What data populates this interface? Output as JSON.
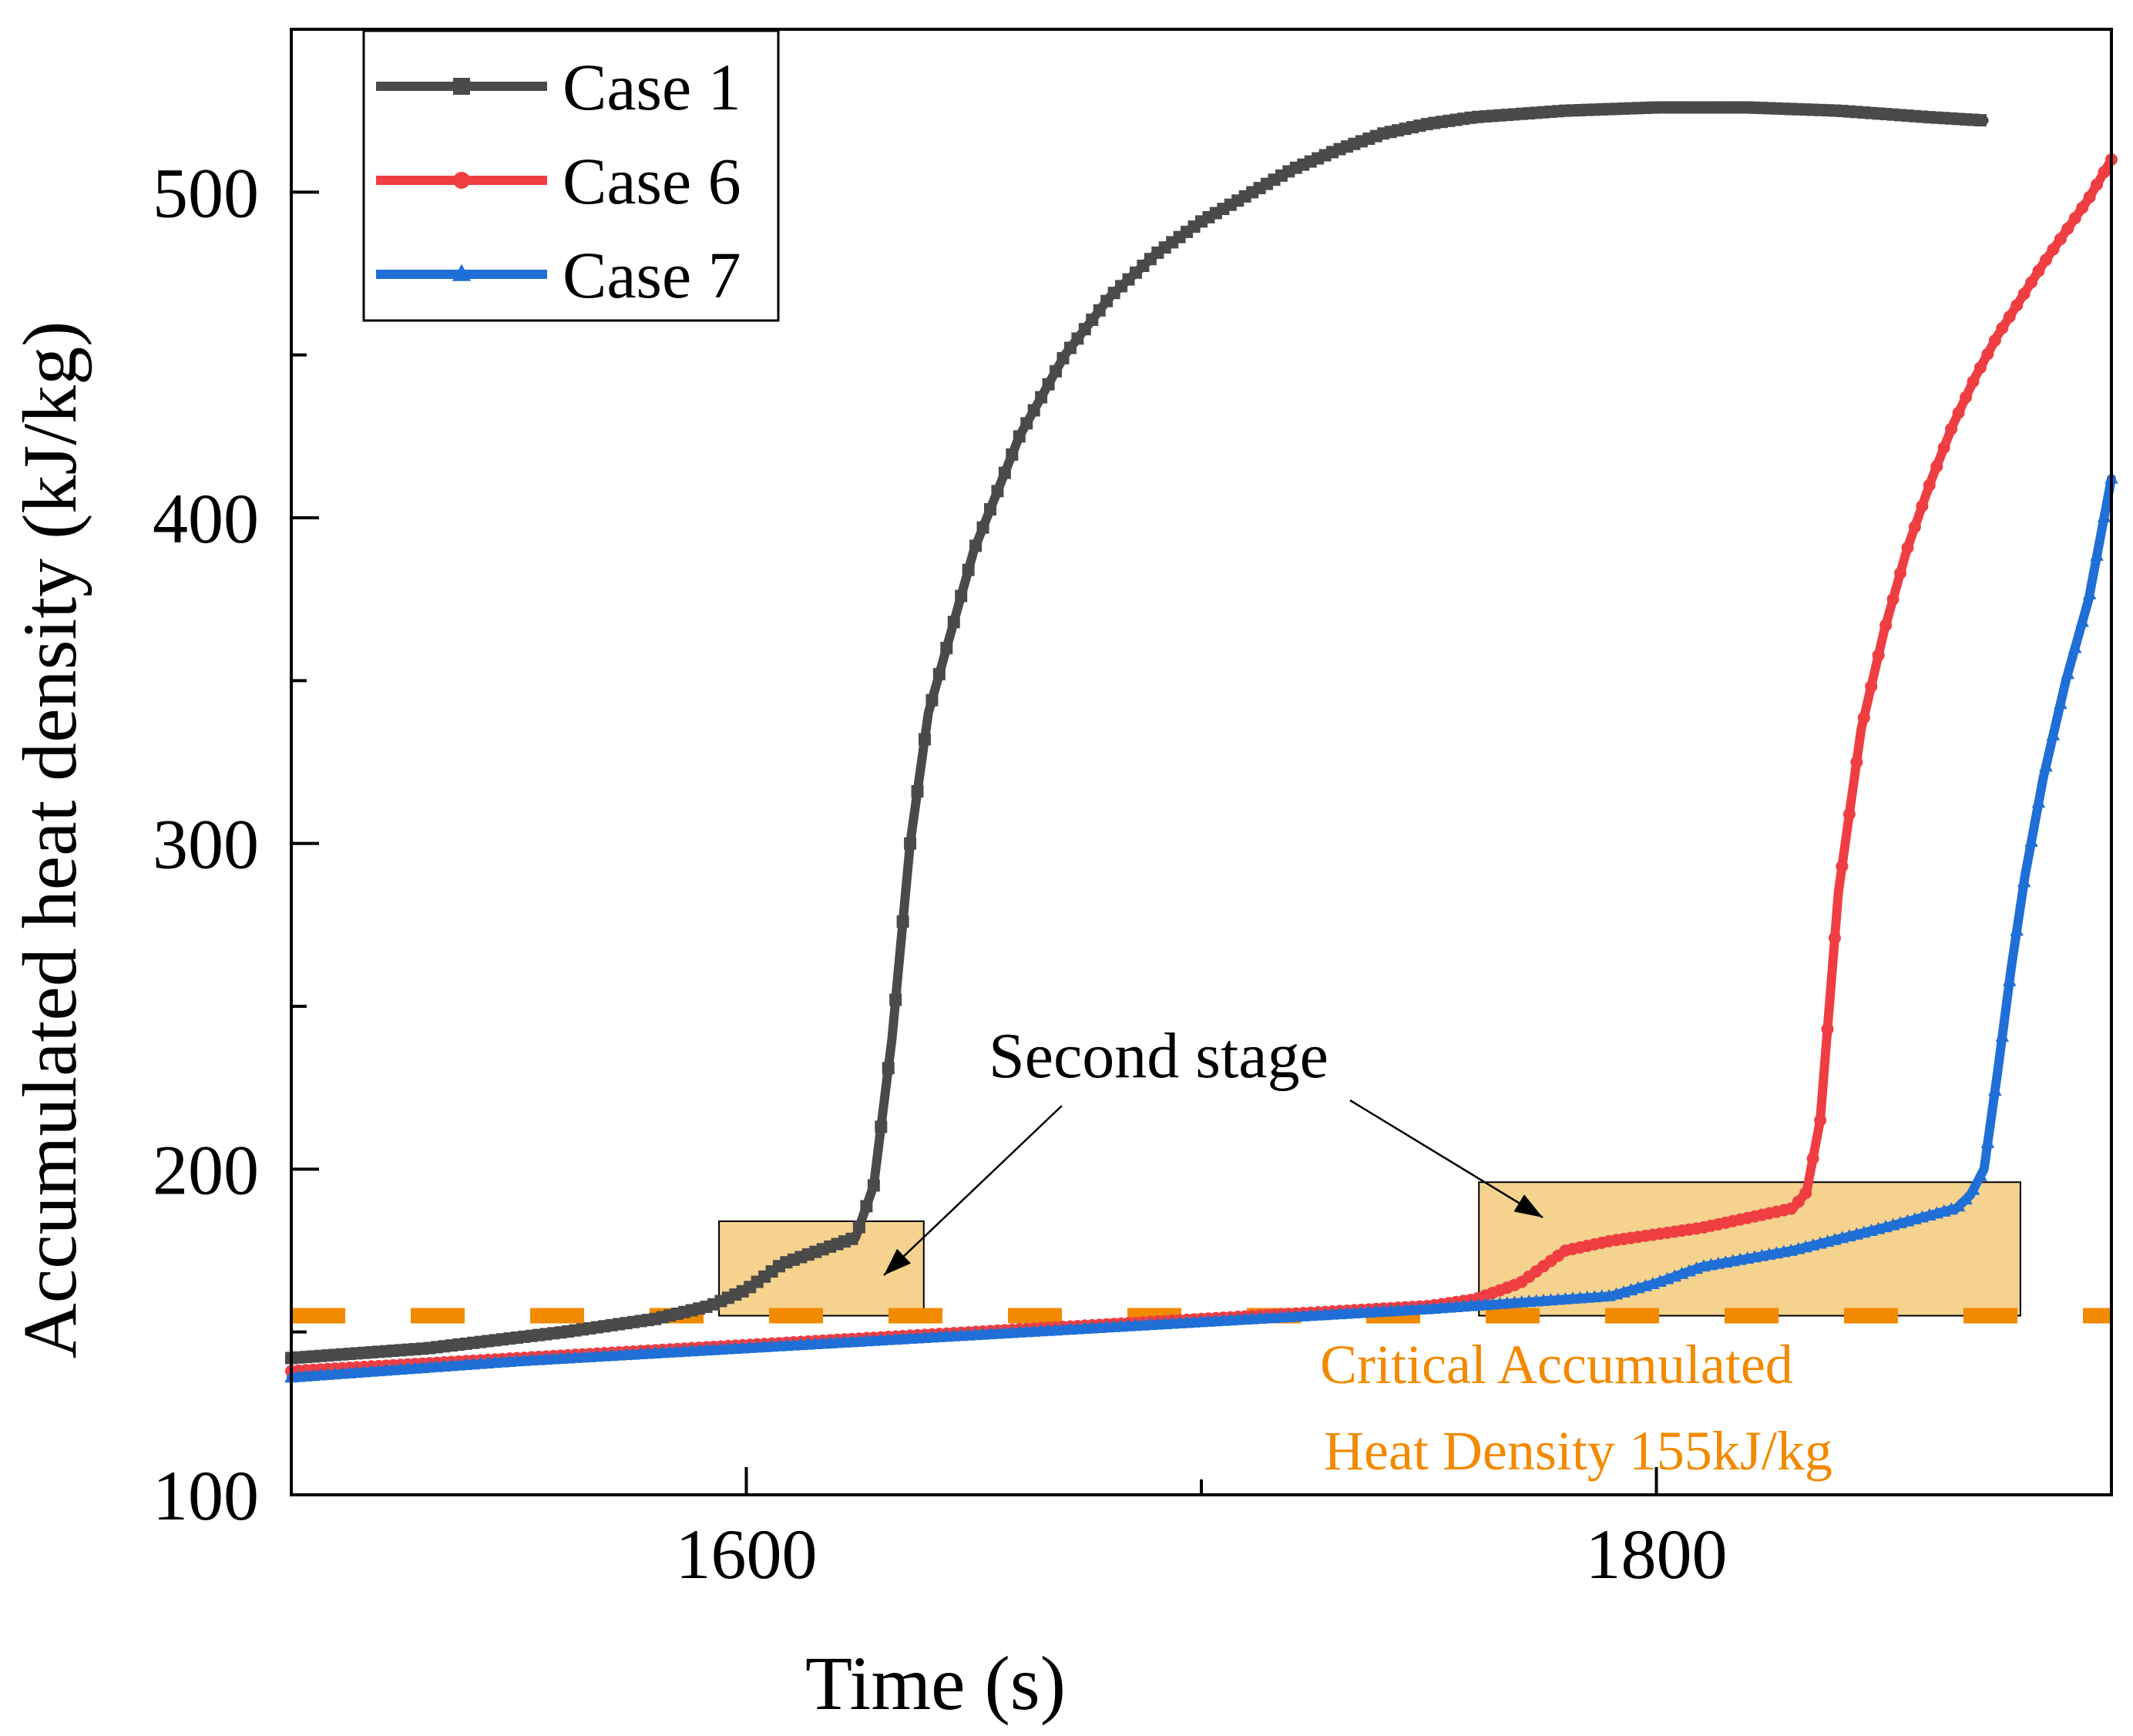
{
  "colors": {
    "case1": "#4a4a4a",
    "case6": "#ef3e42",
    "case7": "#1f6fd6",
    "critical": "#f28a00",
    "highlight": "#f5d28e"
  },
  "chart_data": {
    "type": "line",
    "title": "",
    "xlabel": "Time (s)",
    "ylabel": "Accumulated heat density (kJ/kg)",
    "xlim": [
      1500,
      1900
    ],
    "ylim": [
      100,
      550
    ],
    "x_ticks": [
      1600,
      1800
    ],
    "x_tick_labels": [
      "1600",
      "1800"
    ],
    "x_minor_ticks": [
      1700
    ],
    "y_ticks": [
      100,
      200,
      300,
      400,
      500
    ],
    "y_tick_labels": [
      "100",
      "200",
      "300",
      "400",
      "500"
    ],
    "y_minor_ticks": [
      150,
      250,
      350,
      450
    ],
    "grid": false,
    "legend_position": "top-left",
    "series": [
      {
        "name": "Case 1",
        "marker": "square",
        "color": "#4a4a4a",
        "points": [
          [
            1500,
            142
          ],
          [
            1530,
            145
          ],
          [
            1560,
            150
          ],
          [
            1580,
            154
          ],
          [
            1592,
            158
          ],
          [
            1600,
            163
          ],
          [
            1608,
            171
          ],
          [
            1616,
            175
          ],
          [
            1624,
            179
          ],
          [
            1628,
            195
          ],
          [
            1632,
            240
          ],
          [
            1636,
            300
          ],
          [
            1640,
            340
          ],
          [
            1650,
            390
          ],
          [
            1660,
            425
          ],
          [
            1670,
            450
          ],
          [
            1680,
            468
          ],
          [
            1690,
            481
          ],
          [
            1700,
            491
          ],
          [
            1710,
            499
          ],
          [
            1720,
            507
          ],
          [
            1730,
            513
          ],
          [
            1740,
            518
          ],
          [
            1750,
            521
          ],
          [
            1760,
            523
          ],
          [
            1780,
            525
          ],
          [
            1800,
            526
          ],
          [
            1820,
            526
          ],
          [
            1840,
            525
          ],
          [
            1860,
            523
          ],
          [
            1872,
            522
          ]
        ]
      },
      {
        "name": "Case 6",
        "marker": "circle",
        "color": "#ef3e42",
        "points": [
          [
            1500,
            138
          ],
          [
            1550,
            142
          ],
          [
            1600,
            146
          ],
          [
            1650,
            150
          ],
          [
            1700,
            154
          ],
          [
            1750,
            158
          ],
          [
            1760,
            160
          ],
          [
            1770,
            165
          ],
          [
            1780,
            175
          ],
          [
            1790,
            178
          ],
          [
            1800,
            180
          ],
          [
            1810,
            182
          ],
          [
            1820,
            185
          ],
          [
            1830,
            188
          ],
          [
            1833,
            193
          ],
          [
            1836,
            215
          ],
          [
            1838,
            250
          ],
          [
            1840,
            285
          ],
          [
            1842,
            305
          ],
          [
            1845,
            335
          ],
          [
            1850,
            365
          ],
          [
            1855,
            390
          ],
          [
            1860,
            410
          ],
          [
            1865,
            428
          ],
          [
            1870,
            443
          ],
          [
            1875,
            456
          ],
          [
            1880,
            467
          ],
          [
            1885,
            478
          ],
          [
            1890,
            488
          ],
          [
            1895,
            498
          ],
          [
            1900,
            510
          ]
        ]
      },
      {
        "name": "Case 7",
        "marker": "triangle",
        "color": "#1f6fd6",
        "points": [
          [
            1500,
            136
          ],
          [
            1550,
            141
          ],
          [
            1600,
            145
          ],
          [
            1650,
            149
          ],
          [
            1700,
            153
          ],
          [
            1750,
            157
          ],
          [
            1770,
            159
          ],
          [
            1790,
            161
          ],
          [
            1800,
            165
          ],
          [
            1810,
            170
          ],
          [
            1830,
            175
          ],
          [
            1850,
            182
          ],
          [
            1866,
            188
          ],
          [
            1869,
            192
          ],
          [
            1872,
            200
          ],
          [
            1875,
            230
          ],
          [
            1878,
            262
          ],
          [
            1881,
            290
          ],
          [
            1885,
            320
          ],
          [
            1890,
            350
          ],
          [
            1895,
            375
          ],
          [
            1900,
            412
          ]
        ]
      }
    ],
    "reference_line": {
      "value": 155,
      "label_line1": "Critical Accumulated",
      "label_line2": "Heat Density 155kJ/kg"
    },
    "highlight_boxes": [
      {
        "x_range": [
          1594,
          1639
        ],
        "y_range": [
          155,
          184
        ]
      },
      {
        "x_range": [
          1761,
          1880
        ],
        "y_range": [
          155,
          196
        ]
      }
    ],
    "annotation": {
      "text": "Second stage"
    }
  }
}
